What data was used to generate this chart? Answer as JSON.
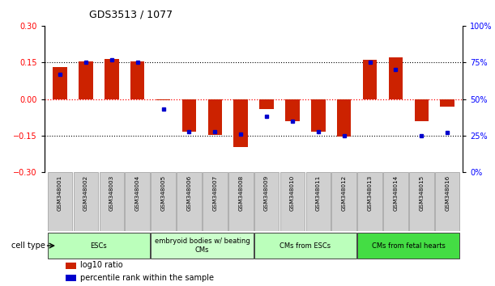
{
  "title": "GDS3513 / 1077",
  "samples": [
    "GSM348001",
    "GSM348002",
    "GSM348003",
    "GSM348004",
    "GSM348005",
    "GSM348006",
    "GSM348007",
    "GSM348008",
    "GSM348009",
    "GSM348010",
    "GSM348011",
    "GSM348012",
    "GSM348013",
    "GSM348014",
    "GSM348015",
    "GSM348016"
  ],
  "log10_ratio": [
    0.13,
    0.155,
    0.165,
    0.153,
    -0.005,
    -0.135,
    -0.148,
    -0.195,
    -0.04,
    -0.09,
    -0.135,
    -0.155,
    0.16,
    0.17,
    -0.09,
    -0.03
  ],
  "percentile_rank": [
    67,
    75,
    77,
    75,
    43,
    28,
    28,
    26,
    38,
    35,
    28,
    25,
    75,
    70,
    25,
    27
  ],
  "bar_color": "#cc2200",
  "dot_color": "#0000cc",
  "ylim_left": [
    -0.3,
    0.3
  ],
  "ylim_right": [
    0,
    100
  ],
  "yticks_left": [
    -0.3,
    -0.15,
    0,
    0.15,
    0.3
  ],
  "yticks_right": [
    0,
    25,
    50,
    75,
    100
  ],
  "hline_values": [
    -0.15,
    0,
    0.15
  ],
  "cell_type_groups": [
    {
      "label": "ESCs",
      "start": 0,
      "end": 3,
      "color": "#bbffbb"
    },
    {
      "label": "embryoid bodies w/ beating\nCMs",
      "start": 4,
      "end": 7,
      "color": "#ccffcc"
    },
    {
      "label": "CMs from ESCs",
      "start": 8,
      "end": 11,
      "color": "#bbffbb"
    },
    {
      "label": "CMs from fetal hearts",
      "start": 12,
      "end": 15,
      "color": "#44dd44"
    }
  ],
  "cell_type_label": "cell type",
  "legend_items": [
    {
      "color": "#cc2200",
      "label": "log10 ratio"
    },
    {
      "color": "#0000cc",
      "label": "percentile rank within the sample"
    }
  ]
}
